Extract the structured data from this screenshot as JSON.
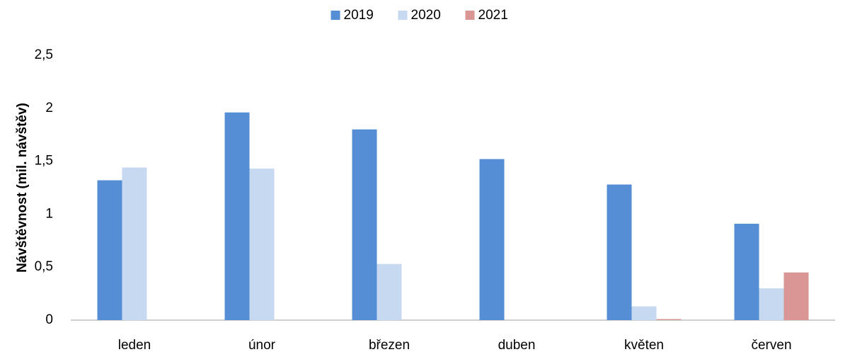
{
  "chart_data": {
    "type": "bar",
    "categories": [
      "leden",
      "únor",
      "březen",
      "duben",
      "květen",
      "červen"
    ],
    "series": [
      {
        "name": "2019",
        "color": "#558ed5",
        "values": [
          1.32,
          1.96,
          1.8,
          1.52,
          1.28,
          0.91
        ]
      },
      {
        "name": "2020",
        "color": "#c6d9f1",
        "values": [
          1.44,
          1.43,
          0.53,
          0,
          0.13,
          0.3
        ]
      },
      {
        "name": "2021",
        "color": "#d99694",
        "values": [
          null,
          null,
          null,
          null,
          0.01,
          0.45
        ]
      }
    ],
    "y_label": "Návštěvnost (mil. návštěv)",
    "ylim": [
      0,
      2.5
    ],
    "yticks": [
      0,
      {
        "value": 0.5,
        "label": "0,5"
      },
      1,
      {
        "value": 1.5,
        "label": "1,5"
      },
      2,
      {
        "value": 2.5,
        "label": "2,5"
      }
    ],
    "legend": "top"
  }
}
